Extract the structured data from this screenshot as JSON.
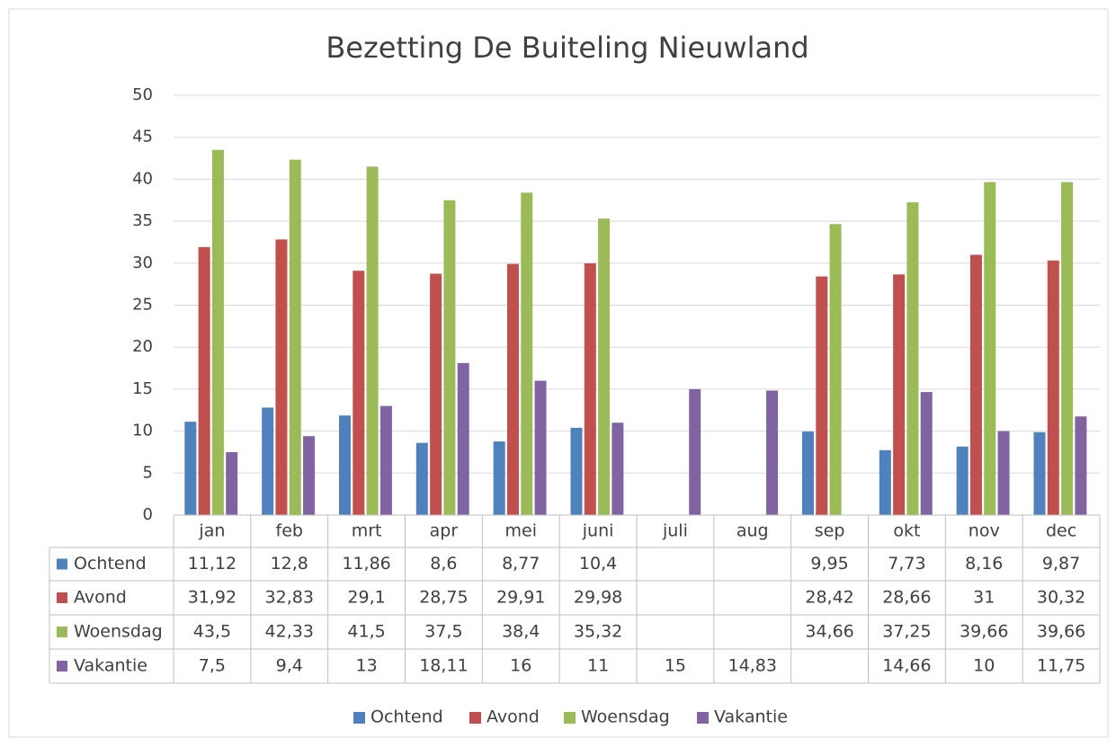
{
  "chart_data": {
    "type": "bar",
    "title": "Bezetting De Buiteling Nieuwland",
    "categories": [
      "jan",
      "feb",
      "mrt",
      "apr",
      "mei",
      "juni",
      "juli",
      "aug",
      "sep",
      "okt",
      "nov",
      "dec"
    ],
    "series": [
      {
        "name": "Ochtend",
        "color": "#4f81bd",
        "values": [
          11.12,
          12.8,
          11.86,
          8.6,
          8.77,
          10.4,
          null,
          null,
          9.95,
          7.73,
          8.16,
          9.87
        ],
        "value_labels": [
          "11,12",
          "12,8",
          "11,86",
          "8,6",
          "8,77",
          "10,4",
          null,
          null,
          "9,95",
          "7,73",
          "8,16",
          "9,87"
        ]
      },
      {
        "name": "Avond",
        "color": "#c0504d",
        "values": [
          31.92,
          32.83,
          29.1,
          28.75,
          29.91,
          29.98,
          null,
          null,
          28.42,
          28.66,
          31,
          30.32
        ],
        "value_labels": [
          "31,92",
          "32,83",
          "29,1",
          "28,75",
          "29,91",
          "29,98",
          null,
          null,
          "28,42",
          "28,66",
          "31",
          "30,32"
        ]
      },
      {
        "name": "Woensdag",
        "color": "#9bbb59",
        "values": [
          43.5,
          42.33,
          41.5,
          37.5,
          38.4,
          35.32,
          null,
          null,
          34.66,
          37.25,
          39.66,
          39.66
        ],
        "value_labels": [
          "43,5",
          "42,33",
          "41,5",
          "37,5",
          "38,4",
          "35,32",
          null,
          null,
          "34,66",
          "37,25",
          "39,66",
          "39,66"
        ]
      },
      {
        "name": "Vakantie",
        "color": "#8064a2",
        "values": [
          7.5,
          9.4,
          13,
          18.11,
          16,
          11,
          15,
          14.83,
          null,
          14.66,
          10,
          11.75
        ],
        "value_labels": [
          "7,5",
          "9,4",
          "13",
          "18,11",
          "16",
          "11",
          "15",
          "14,83",
          null,
          "14,66",
          "10",
          "11,75"
        ]
      }
    ],
    "ylim": [
      0,
      50
    ],
    "yticks": [
      0,
      5,
      10,
      15,
      20,
      25,
      30,
      35,
      40,
      45,
      50
    ],
    "grid": true,
    "legend": "bottom"
  }
}
